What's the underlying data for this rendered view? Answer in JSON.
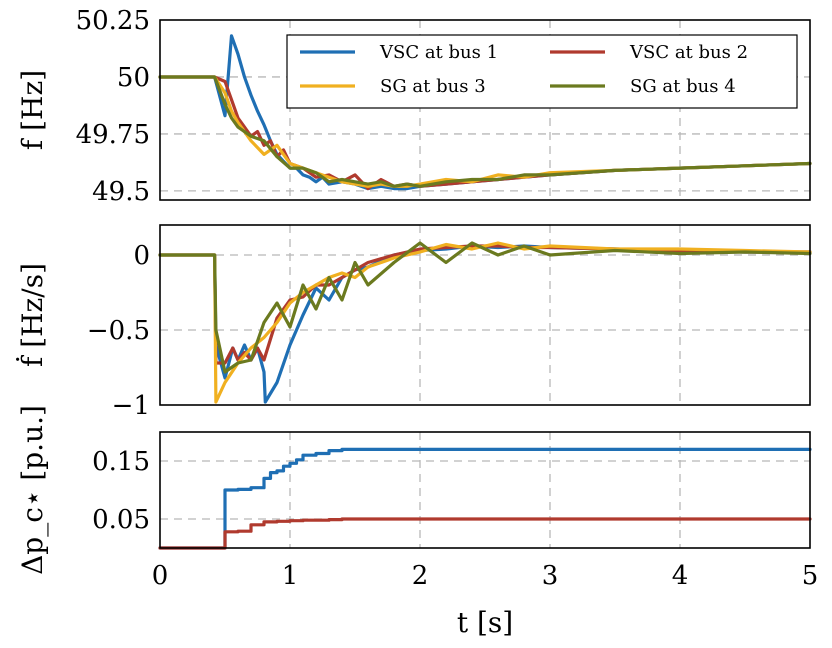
{
  "chart_data": [
    {
      "type": "line",
      "id": "freq",
      "ylabel": "f [Hz]",
      "xlim": [
        0,
        5
      ],
      "ylim": [
        49.46,
        50.25
      ],
      "yticks": [
        49.5,
        49.75,
        50,
        50.25
      ],
      "ytick_labels": [
        "49.5",
        "49.75",
        "50",
        "50.25"
      ],
      "legend_position": "top-right",
      "series": [
        {
          "name": "VSC at bus 1",
          "color": "#1f6fb4",
          "x": [
            0,
            0.42,
            0.5,
            0.55,
            0.6,
            0.65,
            0.7,
            0.75,
            0.8,
            0.85,
            0.9,
            0.95,
            1.0,
            1.05,
            1.1,
            1.15,
            1.2,
            1.25,
            1.3,
            1.4,
            1.5,
            1.6,
            1.7,
            1.8,
            1.9,
            2.0,
            2.2,
            2.4,
            2.6,
            2.8,
            3.0,
            3.5,
            4.0,
            4.5,
            5.0
          ],
          "y": [
            50,
            50,
            49.83,
            50.18,
            50.1,
            50.0,
            49.92,
            49.85,
            49.79,
            49.72,
            49.66,
            49.63,
            49.6,
            49.6,
            49.57,
            49.56,
            49.54,
            49.56,
            49.53,
            49.54,
            49.53,
            49.51,
            49.52,
            49.51,
            49.51,
            49.52,
            49.53,
            49.54,
            49.55,
            49.56,
            49.57,
            49.59,
            49.6,
            49.61,
            49.62
          ]
        },
        {
          "name": "VSC at bus 2",
          "color": "#b03a2e",
          "x": [
            0,
            0.42,
            0.5,
            0.55,
            0.6,
            0.65,
            0.7,
            0.75,
            0.8,
            0.85,
            0.9,
            0.95,
            1.0,
            1.1,
            1.2,
            1.3,
            1.4,
            1.5,
            1.6,
            1.7,
            1.8,
            1.9,
            2.0,
            2.2,
            2.4,
            2.6,
            2.8,
            3.0,
            3.5,
            4.0,
            4.5,
            5.0
          ],
          "y": [
            50,
            50,
            49.98,
            49.9,
            49.82,
            49.78,
            49.74,
            49.76,
            49.7,
            49.72,
            49.65,
            49.68,
            49.62,
            49.6,
            49.56,
            49.57,
            49.54,
            49.57,
            49.51,
            49.55,
            49.52,
            49.53,
            49.52,
            49.53,
            49.54,
            49.55,
            49.56,
            49.57,
            49.59,
            49.6,
            49.61,
            49.62
          ]
        },
        {
          "name": "SG at bus 3",
          "color": "#f0b020",
          "x": [
            0,
            0.42,
            0.5,
            0.55,
            0.6,
            0.7,
            0.8,
            0.9,
            1.0,
            1.1,
            1.2,
            1.3,
            1.4,
            1.5,
            1.6,
            1.7,
            1.8,
            1.9,
            2.0,
            2.2,
            2.4,
            2.6,
            2.8,
            3.0,
            3.5,
            4.0,
            4.5,
            5.0
          ],
          "y": [
            50,
            50,
            49.93,
            49.85,
            49.8,
            49.72,
            49.66,
            49.7,
            49.62,
            49.6,
            49.58,
            49.56,
            49.54,
            49.53,
            49.52,
            49.53,
            49.52,
            49.52,
            49.53,
            49.55,
            49.54,
            49.57,
            49.56,
            49.58,
            49.59,
            49.6,
            49.61,
            49.62
          ]
        },
        {
          "name": "SG at bus 4",
          "color": "#6b7a1f",
          "x": [
            0,
            0.42,
            0.5,
            0.55,
            0.6,
            0.7,
            0.8,
            0.9,
            1.0,
            1.1,
            1.2,
            1.3,
            1.4,
            1.5,
            1.6,
            1.7,
            1.8,
            1.9,
            2.0,
            2.2,
            2.4,
            2.6,
            2.8,
            3.0,
            3.5,
            4.0,
            4.5,
            5.0
          ],
          "y": [
            50,
            50,
            49.88,
            49.82,
            49.78,
            49.74,
            49.72,
            49.65,
            49.6,
            49.6,
            49.58,
            49.54,
            49.55,
            49.54,
            49.53,
            49.54,
            49.52,
            49.53,
            49.52,
            49.54,
            49.55,
            49.55,
            49.57,
            49.57,
            49.59,
            49.6,
            49.61,
            49.62
          ]
        }
      ],
      "legend": [
        "VSC at bus 1",
        "VSC at bus 2",
        "SG at bus 3",
        "SG at bus 4"
      ]
    },
    {
      "type": "line",
      "id": "rocof",
      "ylabel": "ḟ [Hz/s]",
      "xlim": [
        0,
        5
      ],
      "ylim": [
        -1,
        0.2
      ],
      "yticks": [
        -1,
        -0.5,
        0
      ],
      "ytick_labels": [
        "−1",
        "−0.5",
        "0"
      ],
      "series": [
        {
          "name": "VSC at bus 1",
          "color": "#1f6fb4",
          "x": [
            0,
            0.42,
            0.43,
            0.5,
            0.56,
            0.6,
            0.65,
            0.7,
            0.75,
            0.8,
            0.81,
            0.9,
            1.0,
            1.1,
            1.2,
            1.3,
            1.4,
            1.5,
            1.6,
            1.8,
            2.0,
            2.2,
            2.4,
            2.6,
            2.8,
            3.0,
            3.5,
            4.0,
            4.5,
            5.0
          ],
          "y": [
            0,
            0,
            -0.6,
            -0.82,
            -0.62,
            -0.7,
            -0.6,
            -0.7,
            -0.62,
            -0.78,
            -0.98,
            -0.85,
            -0.6,
            -0.4,
            -0.22,
            -0.3,
            -0.15,
            -0.1,
            -0.08,
            0.0,
            0.03,
            0.04,
            0.06,
            0.05,
            0.06,
            0.05,
            0.04,
            0.03,
            0.02,
            0.02
          ]
        },
        {
          "name": "VSC at bus 2",
          "color": "#b03a2e",
          "x": [
            0,
            0.42,
            0.43,
            0.5,
            0.56,
            0.6,
            0.65,
            0.7,
            0.75,
            0.8,
            0.9,
            1.0,
            1.1,
            1.2,
            1.3,
            1.4,
            1.5,
            1.6,
            1.8,
            2.0,
            2.2,
            2.4,
            2.6,
            2.8,
            3.0,
            3.5,
            4.0,
            4.5,
            5.0
          ],
          "y": [
            0,
            0,
            -0.72,
            -0.72,
            -0.62,
            -0.7,
            -0.65,
            -0.7,
            -0.62,
            -0.7,
            -0.42,
            -0.3,
            -0.28,
            -0.2,
            -0.2,
            -0.15,
            -0.1,
            -0.05,
            0.0,
            0.04,
            0.05,
            0.06,
            0.06,
            0.05,
            0.05,
            0.04,
            0.03,
            0.02,
            0.02
          ]
        },
        {
          "name": "SG at bus 3",
          "color": "#f0b020",
          "x": [
            0,
            0.42,
            0.43,
            0.5,
            0.6,
            0.7,
            0.8,
            0.9,
            1.0,
            1.1,
            1.2,
            1.3,
            1.4,
            1.5,
            1.6,
            1.8,
            2.0,
            2.2,
            2.4,
            2.6,
            2.8,
            3.0,
            3.5,
            4.0,
            4.5,
            5.0
          ],
          "y": [
            0,
            0,
            -0.98,
            -0.85,
            -0.72,
            -0.62,
            -0.55,
            -0.45,
            -0.32,
            -0.25,
            -0.2,
            -0.15,
            -0.12,
            -0.15,
            -0.08,
            -0.02,
            0.02,
            0.07,
            0.04,
            0.08,
            0.04,
            0.06,
            0.04,
            0.04,
            0.03,
            0.02
          ]
        },
        {
          "name": "SG at bus 4",
          "color": "#6b7a1f",
          "x": [
            0,
            0.42,
            0.43,
            0.5,
            0.6,
            0.7,
            0.8,
            0.9,
            1.0,
            1.1,
            1.2,
            1.3,
            1.4,
            1.5,
            1.6,
            1.8,
            2.0,
            2.2,
            2.4,
            2.6,
            2.8,
            3.0,
            3.5,
            4.0,
            4.5,
            5.0
          ],
          "y": [
            0,
            0,
            -0.5,
            -0.78,
            -0.72,
            -0.7,
            -0.45,
            -0.32,
            -0.48,
            -0.2,
            -0.36,
            -0.15,
            -0.3,
            -0.05,
            -0.2,
            -0.05,
            0.08,
            -0.05,
            0.08,
            0.0,
            0.06,
            0.0,
            0.03,
            0.01,
            0.02,
            0.01
          ]
        }
      ]
    },
    {
      "type": "line",
      "id": "delta-p",
      "ylabel": "Δp_c⋆ [p.u.]",
      "xlabel": "t [s]",
      "xlim": [
        0,
        5
      ],
      "ylim": [
        0,
        0.2
      ],
      "xticks": [
        0,
        1,
        2,
        3,
        4,
        5
      ],
      "xtick_labels": [
        "0",
        "1",
        "2",
        "3",
        "4",
        "5"
      ],
      "yticks": [
        0.05,
        0.15
      ],
      "ytick_labels": [
        "0.05",
        "0.15"
      ],
      "series": [
        {
          "name": "VSC at bus 1",
          "color": "#1f6fb4",
          "step": true,
          "x": [
            0,
            0.5,
            0.6,
            0.7,
            0.8,
            0.85,
            0.9,
            0.95,
            1.0,
            1.05,
            1.1,
            1.2,
            1.3,
            1.4,
            5.0
          ],
          "y": [
            0,
            0.1,
            0.101,
            0.104,
            0.12,
            0.13,
            0.133,
            0.141,
            0.146,
            0.152,
            0.16,
            0.163,
            0.168,
            0.17,
            0.17
          ]
        },
        {
          "name": "VSC at bus 2",
          "color": "#b03a2e",
          "step": true,
          "x": [
            0,
            0.5,
            0.6,
            0.7,
            0.8,
            0.9,
            1.0,
            1.1,
            1.3,
            1.4,
            5.0
          ],
          "y": [
            0,
            0.028,
            0.029,
            0.04,
            0.045,
            0.046,
            0.047,
            0.048,
            0.049,
            0.05,
            0.05
          ]
        }
      ]
    }
  ]
}
